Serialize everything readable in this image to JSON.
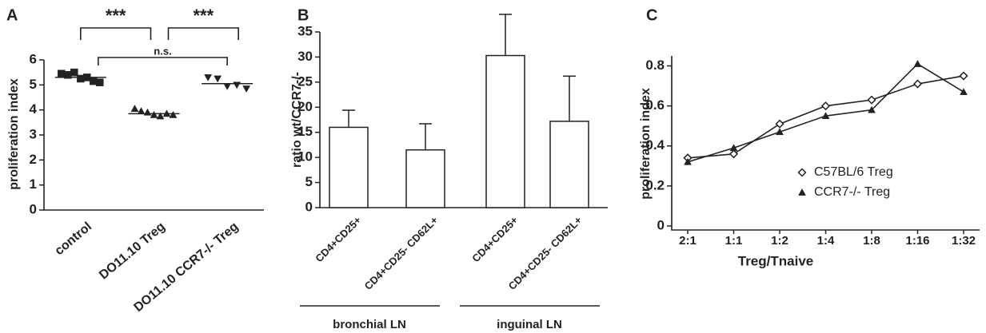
{
  "chart_data": [
    {
      "type": "dotplot",
      "label": "A",
      "ylabel": "proliferation index",
      "categories": [
        "control",
        "DO11.10 Treg",
        "DO11.10 CCR7-/- Treg"
      ],
      "groups": [
        [
          5.45,
          5.4,
          5.5,
          5.25,
          5.3,
          5.15,
          5.1
        ],
        [
          4.05,
          3.95,
          3.9,
          3.8,
          3.75,
          3.85,
          3.8
        ],
        [
          5.3,
          5.25,
          4.95,
          5.0,
          4.85
        ]
      ],
      "means": [
        5.3,
        3.85,
        5.05
      ],
      "markers": [
        "square",
        "triangle-up",
        "triangle-down"
      ],
      "color": "#222222",
      "annotations": [
        "***",
        "***",
        "n.s."
      ],
      "ylim": [
        0,
        6
      ],
      "yticks": [
        0,
        1,
        2,
        3,
        4,
        5,
        6
      ]
    },
    {
      "type": "bar",
      "label": "B",
      "ylabel": "ratio wt/CCR7-/-",
      "categories": [
        "CD4+CD25+",
        "CD4+CD25- CD62L+",
        "CD4+CD25+",
        "CD4+CD25- CD62L+"
      ],
      "groups": [
        "bronchial LN",
        "inguinal LN"
      ],
      "values": [
        16,
        11.5,
        30.3,
        17.2
      ],
      "errors": [
        3.4,
        5.2,
        8.2,
        9
      ],
      "color": "#ffffff",
      "ylim": [
        0,
        35
      ],
      "yticks": [
        0,
        5,
        10,
        15,
        20,
        25,
        30,
        35
      ]
    },
    {
      "type": "line",
      "label": "C",
      "ylabel": "proliferation index",
      "xlabel": "Treg/Tnaive",
      "categories": [
        "2:1",
        "1:1",
        "1:2",
        "1:4",
        "1:8",
        "1:16",
        "1:32"
      ],
      "series": [
        {
          "name": "C57BL/6 Treg",
          "color": "#222222",
          "marker": "diamond",
          "values": [
            0.34,
            0.36,
            0.51,
            0.6,
            0.63,
            0.71,
            0.75
          ]
        },
        {
          "name": "CCR7-/- Treg",
          "color": "#222222",
          "marker": "triangle-up",
          "values": [
            0.32,
            0.39,
            0.47,
            0.55,
            0.58,
            0.81,
            0.67
          ]
        }
      ],
      "ylim": [
        0,
        0.85
      ],
      "yticks": [
        0,
        0.2,
        0.4,
        0.6,
        0.8
      ]
    }
  ]
}
